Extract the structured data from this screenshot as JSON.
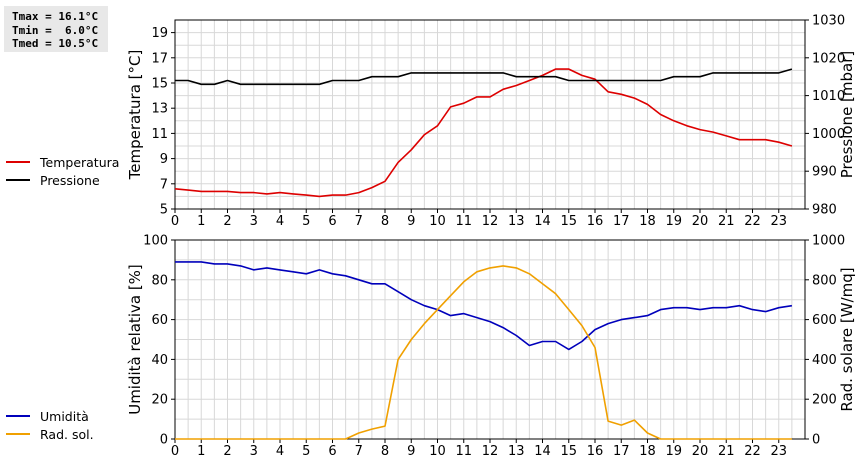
{
  "stats": {
    "tmax": "Tmax = 16.1°C",
    "tmin": "Tmin =  6.0°C",
    "tmed": "Tmed = 10.5°C"
  },
  "legend_top": [
    {
      "label": "Temperatura",
      "color": "#dd0000"
    },
    {
      "label": "Pressione",
      "color": "#000000"
    }
  ],
  "legend_bottom": [
    {
      "label": "Umidità",
      "color": "#0000bb"
    },
    {
      "label": "Rad. sol.",
      "color": "#f0a000"
    }
  ],
  "chart_data": [
    {
      "type": "line",
      "ylabel": "Temperatura [°C]",
      "y2label": "Pressione [mbar]",
      "xlim": [
        0,
        24
      ],
      "ylim": [
        5,
        20
      ],
      "y2lim": [
        980,
        1030
      ],
      "x_ticks": [
        0,
        1,
        2,
        3,
        4,
        5,
        6,
        7,
        8,
        9,
        10,
        11,
        12,
        13,
        14,
        15,
        16,
        17,
        18,
        19,
        20,
        21,
        22,
        23
      ],
      "y_ticks": [
        5,
        7,
        9,
        11,
        13,
        15,
        17,
        19
      ],
      "y2_ticks": [
        980,
        990,
        1000,
        1010,
        1020,
        1030
      ],
      "grid": true,
      "series": [
        {
          "name": "Temperatura",
          "axis": "left",
          "color": "#dd0000",
          "x": [
            0,
            0.5,
            1,
            1.5,
            2,
            2.5,
            3,
            3.5,
            4,
            4.5,
            5,
            5.5,
            6,
            6.5,
            7,
            7.5,
            8,
            8.5,
            9,
            9.5,
            10,
            10.5,
            11,
            11.5,
            12,
            12.5,
            13,
            13.5,
            14,
            14.5,
            15,
            15.5,
            16,
            16.5,
            17,
            17.5,
            18,
            18.5,
            19,
            19.5,
            20,
            20.5,
            21,
            21.5,
            22,
            22.5,
            23,
            23.5
          ],
          "y": [
            6.6,
            6.5,
            6.4,
            6.4,
            6.4,
            6.3,
            6.3,
            6.2,
            6.3,
            6.2,
            6.1,
            6.0,
            6.1,
            6.1,
            6.3,
            6.7,
            7.2,
            8.7,
            9.7,
            10.9,
            11.6,
            13.1,
            13.4,
            13.9,
            13.9,
            14.5,
            14.8,
            15.2,
            15.6,
            16.1,
            16.1,
            15.6,
            15.3,
            14.3,
            14.1,
            13.8,
            13.3,
            12.5,
            12.0,
            11.6,
            11.3,
            11.1,
            10.8,
            10.5,
            10.5,
            10.5,
            10.3,
            10.0
          ]
        },
        {
          "name": "Pressione",
          "axis": "right",
          "color": "#000000",
          "x": [
            0,
            0.5,
            1,
            1.5,
            2,
            2.5,
            3,
            3.5,
            4,
            4.5,
            5,
            5.5,
            6,
            6.5,
            7,
            7.5,
            8,
            8.5,
            9,
            9.5,
            10,
            10.5,
            11,
            11.5,
            12,
            12.5,
            13,
            13.5,
            14,
            14.5,
            15,
            15.5,
            16,
            16.5,
            17,
            17.5,
            18,
            18.5,
            19,
            19.5,
            20,
            20.5,
            21,
            21.5,
            22,
            22.5,
            23,
            23.5
          ],
          "y": [
            1014,
            1014,
            1013,
            1013,
            1014,
            1013,
            1013,
            1013,
            1013,
            1013,
            1013,
            1013,
            1014,
            1014,
            1014,
            1015,
            1015,
            1015,
            1016,
            1016,
            1016,
            1016,
            1016,
            1016,
            1016,
            1016,
            1015,
            1015,
            1015,
            1015,
            1014,
            1014,
            1014,
            1014,
            1014,
            1014,
            1014,
            1014,
            1015,
            1015,
            1015,
            1016,
            1016,
            1016,
            1016,
            1016,
            1016,
            1017
          ]
        }
      ]
    },
    {
      "type": "line",
      "ylabel": "Umidità relativa [%]",
      "y2label": "Rad. solare [W/mq]",
      "xlim": [
        0,
        24
      ],
      "ylim": [
        0,
        100
      ],
      "y2lim": [
        0,
        1000
      ],
      "x_ticks": [
        0,
        1,
        2,
        3,
        4,
        5,
        6,
        7,
        8,
        9,
        10,
        11,
        12,
        13,
        14,
        15,
        16,
        17,
        18,
        19,
        20,
        21,
        22,
        23
      ],
      "y_ticks": [
        0,
        20,
        40,
        60,
        80,
        100
      ],
      "y2_ticks": [
        0,
        200,
        400,
        600,
        800,
        1000
      ],
      "grid": true,
      "series": [
        {
          "name": "Umidità",
          "axis": "left",
          "color": "#0000bb",
          "x": [
            0,
            0.5,
            1,
            1.5,
            2,
            2.5,
            3,
            3.5,
            4,
            4.5,
            5,
            5.5,
            6,
            6.5,
            7,
            7.5,
            8,
            8.5,
            9,
            9.5,
            10,
            10.5,
            11,
            11.5,
            12,
            12.5,
            13,
            13.5,
            14,
            14.5,
            15,
            15.5,
            16,
            16.5,
            17,
            17.5,
            18,
            18.5,
            19,
            19.5,
            20,
            20.5,
            21,
            21.5,
            22,
            22.5,
            23,
            23.5
          ],
          "y": [
            89,
            89,
            89,
            88,
            88,
            87,
            85,
            86,
            85,
            84,
            83,
            85,
            83,
            82,
            80,
            78,
            78,
            74,
            70,
            67,
            65,
            62,
            63,
            61,
            59,
            56,
            52,
            47,
            49,
            49,
            45,
            49,
            55,
            58,
            60,
            61,
            62,
            65,
            66,
            66,
            65,
            66,
            66,
            67,
            65,
            64,
            66,
            67
          ]
        },
        {
          "name": "Rad. sol.",
          "axis": "right",
          "color": "#f0a000",
          "x": [
            0,
            6.5,
            7,
            7.5,
            8,
            8.5,
            9,
            9.5,
            10,
            10.5,
            11,
            11.5,
            12,
            12.5,
            13,
            13.5,
            14,
            14.5,
            15,
            15.5,
            16,
            16.5,
            17,
            17.5,
            18,
            18.5,
            19,
            23.5
          ],
          "y": [
            0,
            0,
            30,
            50,
            65,
            400,
            500,
            580,
            650,
            720,
            790,
            840,
            860,
            870,
            860,
            830,
            780,
            730,
            650,
            570,
            460,
            90,
            70,
            95,
            30,
            0,
            0,
            0
          ]
        }
      ]
    }
  ]
}
